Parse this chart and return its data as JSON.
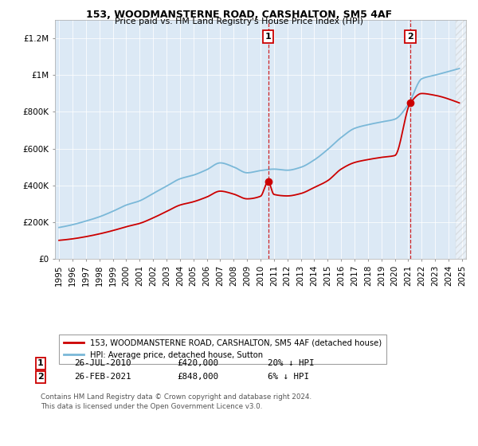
{
  "title1": "153, WOODMANSTERNE ROAD, CARSHALTON, SM5 4AF",
  "title2": "Price paid vs. HM Land Registry's House Price Index (HPI)",
  "background_color": "#ffffff",
  "plot_bg_color": "#dce9f5",
  "legend_label_red": "153, WOODMANSTERNE ROAD, CARSHALTON, SM5 4AF (detached house)",
  "legend_label_blue": "HPI: Average price, detached house, Sutton",
  "transaction1": {
    "label": "1",
    "date": 2010.57,
    "price": 420000,
    "note": "26-JUL-2010",
    "price_str": "£420,000",
    "pct": "20% ↓ HPI"
  },
  "transaction2": {
    "label": "2",
    "date": 2021.15,
    "price": 848000,
    "note": "26-FEB-2021",
    "price_str": "£848,000",
    "pct": "6% ↓ HPI"
  },
  "footer": "Contains HM Land Registry data © Crown copyright and database right 2024.\nThis data is licensed under the Open Government Licence v3.0.",
  "ylim": [
    0,
    1300000
  ],
  "xlim_start": 1994.7,
  "xlim_end": 2025.3,
  "hpi_color": "#7ab8d8",
  "price_color": "#cc0000",
  "vline_color": "#cc0000",
  "marker_color": "#cc0000",
  "hatch_start": 2024.5,
  "yticks": [
    0,
    200000,
    400000,
    600000,
    800000,
    1000000,
    1200000
  ],
  "ytick_labels": [
    "£0",
    "£200K",
    "£400K",
    "£600K",
    "£800K",
    "£1M",
    "£1.2M"
  ]
}
